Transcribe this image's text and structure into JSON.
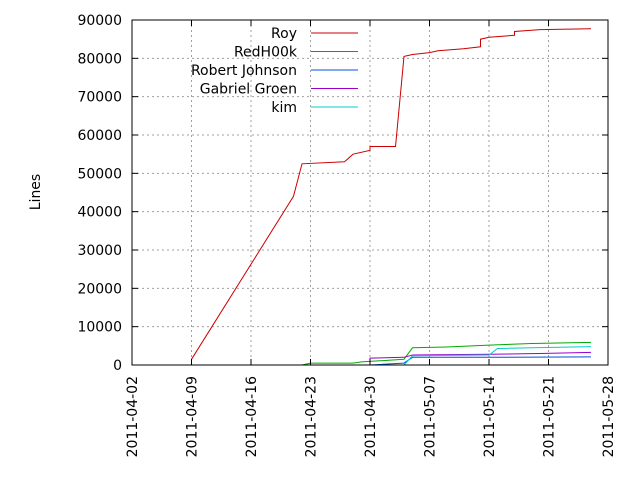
{
  "chart_data": {
    "type": "line",
    "title": "",
    "xlabel": "",
    "ylabel": "Lines",
    "xlim": [
      "2011-04-02",
      "2011-05-28"
    ],
    "ylim": [
      0,
      90000
    ],
    "x_ticks": [
      "2011-04-02",
      "2011-04-09",
      "2011-04-16",
      "2011-04-23",
      "2011-04-30",
      "2011-05-07",
      "2011-05-14",
      "2011-05-21",
      "2011-05-28"
    ],
    "y_ticks": [
      0,
      10000,
      20000,
      30000,
      40000,
      50000,
      60000,
      70000,
      80000,
      90000
    ],
    "grid": true,
    "legend_position": "top-center",
    "series": [
      {
        "name": "Roy",
        "color": "#cc0000",
        "points": [
          [
            "2011-04-09",
            1500
          ],
          [
            "2011-04-21",
            44000
          ],
          [
            "2011-04-22",
            52500
          ],
          [
            "2011-04-27",
            53000
          ],
          [
            "2011-04-28",
            55000
          ],
          [
            "2011-04-30",
            56000
          ],
          [
            "2011-04-30",
            57000
          ],
          [
            "2011-05-03",
            57000
          ],
          [
            "2011-05-04",
            80500
          ],
          [
            "2011-05-05",
            81000
          ],
          [
            "2011-05-07",
            81500
          ],
          [
            "2011-05-08",
            82000
          ],
          [
            "2011-05-11",
            82500
          ],
          [
            "2011-05-13",
            83000
          ],
          [
            "2011-05-13",
            85000
          ],
          [
            "2011-05-14",
            85500
          ],
          [
            "2011-05-17",
            86000
          ],
          [
            "2011-05-17",
            87000
          ],
          [
            "2011-05-20",
            87500
          ],
          [
            "2011-05-26",
            87700
          ]
        ]
      },
      {
        "name": "RedH00k",
        "color": "#00aa00",
        "points": [
          [
            "2011-04-22",
            0
          ],
          [
            "2011-04-23",
            500
          ],
          [
            "2011-04-28",
            500
          ],
          [
            "2011-04-29",
            800
          ],
          [
            "2011-05-04",
            1500
          ],
          [
            "2011-05-05",
            4500
          ],
          [
            "2011-05-09",
            4700
          ],
          [
            "2011-05-14",
            5200
          ],
          [
            "2011-05-19",
            5600
          ],
          [
            "2011-05-26",
            5900
          ]
        ]
      },
      {
        "name": "Robert Johnson",
        "color": "#0050dd",
        "points": [
          [
            "2011-04-30",
            0
          ],
          [
            "2011-05-04",
            500
          ],
          [
            "2011-05-05",
            2000
          ],
          [
            "2011-05-14",
            2000
          ],
          [
            "2011-05-26",
            2100
          ]
        ]
      },
      {
        "name": "Gabriel Groen",
        "color": "#9900cc",
        "points": [
          [
            "2011-04-30",
            0
          ],
          [
            "2011-04-30",
            1800
          ],
          [
            "2011-05-04",
            2000
          ],
          [
            "2011-05-05",
            2600
          ],
          [
            "2011-05-14",
            2800
          ],
          [
            "2011-05-20",
            3000
          ],
          [
            "2011-05-26",
            3300
          ]
        ]
      },
      {
        "name": "kim",
        "color": "#00cccc",
        "points": [
          [
            "2011-05-04",
            0
          ],
          [
            "2011-05-05",
            2400
          ],
          [
            "2011-05-14",
            2600
          ],
          [
            "2011-05-15",
            4300
          ],
          [
            "2011-05-26",
            4800
          ]
        ]
      }
    ]
  }
}
